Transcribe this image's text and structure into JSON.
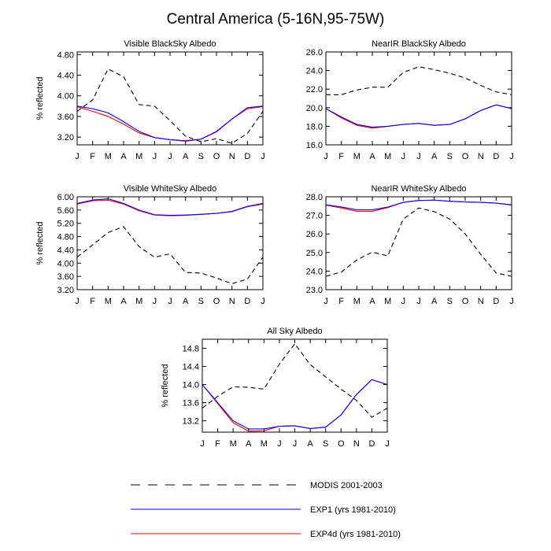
{
  "figure": {
    "title": "Central America (5-16N,95-75W)"
  },
  "legend": [
    {
      "label": "MODIS 2001-2003",
      "color": "#000000",
      "dash": "dashed"
    },
    {
      "label": "EXP1 (yrs 1981-2010)",
      "color": "#0000ff",
      "dash": "solid"
    },
    {
      "label": "EXP4d (yrs 1981-2010)",
      "color": "#ff0000",
      "dash": "solid"
    }
  ],
  "chart_data": [
    {
      "type": "line",
      "title": "Visible BlackSky Albedo",
      "ylabel": "% reflected",
      "categories": [
        "J",
        "F",
        "M",
        "A",
        "M",
        "J",
        "J",
        "A",
        "S",
        "O",
        "N",
        "D",
        "J"
      ],
      "ylim": [
        3.05,
        4.85
      ],
      "yticks": [
        3.2,
        3.6,
        4.0,
        4.4,
        4.8
      ],
      "ytick_labels": [
        "3.20",
        "3.60",
        "4.00",
        "4.40",
        "4.80"
      ],
      "series": [
        {
          "name": "MODIS 2001-2003",
          "color": "#000000",
          "dash": true,
          "values": [
            3.7,
            3.92,
            4.52,
            4.37,
            3.83,
            3.8,
            3.52,
            3.22,
            3.11,
            3.17,
            3.08,
            3.27,
            3.7
          ]
        },
        {
          "name": "EXP4d (yrs 1981-2010)",
          "color": "#ff0000",
          "dash": false,
          "values": [
            3.79,
            3.7,
            3.6,
            3.45,
            3.28,
            3.19,
            3.15,
            3.12,
            3.16,
            3.3,
            3.55,
            3.75,
            3.79
          ]
        },
        {
          "name": "EXP1 (yrs 1981-2010)",
          "color": "#0000ff",
          "dash": false,
          "values": [
            3.8,
            3.75,
            3.67,
            3.5,
            3.31,
            3.19,
            3.15,
            3.13,
            3.16,
            3.31,
            3.55,
            3.77,
            3.8
          ]
        }
      ]
    },
    {
      "type": "line",
      "title": "NearIR BlackSky Albedo",
      "ylabel": "",
      "categories": [
        "J",
        "F",
        "M",
        "A",
        "M",
        "J",
        "J",
        "A",
        "S",
        "O",
        "N",
        "D",
        "J"
      ],
      "ylim": [
        16.0,
        26.0
      ],
      "yticks": [
        16.0,
        18.0,
        20.0,
        22.0,
        24.0,
        26.0
      ],
      "ytick_labels": [
        "16.0",
        "18.0",
        "20.0",
        "22.0",
        "24.0",
        "26.0"
      ],
      "series": [
        {
          "name": "MODIS 2001-2003",
          "color": "#000000",
          "dash": true,
          "values": [
            21.4,
            21.4,
            21.9,
            22.2,
            22.2,
            23.8,
            24.4,
            24.1,
            23.7,
            23.2,
            22.4,
            21.7,
            21.4
          ]
        },
        {
          "name": "EXP4d (yrs 1981-2010)",
          "color": "#ff0000",
          "dash": false,
          "values": [
            19.9,
            18.9,
            18.1,
            17.8,
            18.0,
            18.2,
            18.3,
            18.1,
            18.2,
            18.8,
            19.7,
            20.3,
            19.9
          ]
        },
        {
          "name": "EXP1 (yrs 1981-2010)",
          "color": "#0000ff",
          "dash": false,
          "values": [
            19.9,
            19.0,
            18.2,
            17.9,
            18.0,
            18.2,
            18.3,
            18.1,
            18.2,
            18.8,
            19.7,
            20.3,
            19.9
          ]
        }
      ]
    },
    {
      "type": "line",
      "title": "Visible WhiteSky Albedo",
      "ylabel": "% reflected",
      "categories": [
        "J",
        "F",
        "M",
        "A",
        "M",
        "J",
        "J",
        "A",
        "S",
        "O",
        "N",
        "D",
        "J"
      ],
      "ylim": [
        3.2,
        6.0
      ],
      "yticks": [
        3.2,
        3.6,
        4.0,
        4.4,
        4.8,
        5.2,
        5.6,
        6.0
      ],
      "ytick_labels": [
        "3.20",
        "3.60",
        "4.00",
        "4.40",
        "4.80",
        "5.20",
        "5.60",
        "6.00"
      ],
      "series": [
        {
          "name": "MODIS 2001-2003",
          "color": "#000000",
          "dash": true,
          "values": [
            4.18,
            4.55,
            4.92,
            5.1,
            4.5,
            4.18,
            4.28,
            3.72,
            3.7,
            3.55,
            3.38,
            3.52,
            4.18
          ]
        },
        {
          "name": "EXP4d (yrs 1981-2010)",
          "color": "#ff0000",
          "dash": false,
          "values": [
            5.78,
            5.88,
            5.9,
            5.78,
            5.58,
            5.45,
            5.43,
            5.44,
            5.47,
            5.5,
            5.55,
            5.7,
            5.78
          ]
        },
        {
          "name": "EXP1 (yrs 1981-2010)",
          "color": "#0000ff",
          "dash": false,
          "values": [
            5.8,
            5.9,
            5.94,
            5.8,
            5.6,
            5.46,
            5.44,
            5.45,
            5.47,
            5.5,
            5.56,
            5.71,
            5.8
          ]
        }
      ]
    },
    {
      "type": "line",
      "title": "NearIR WhiteSky Albedo",
      "ylabel": "",
      "categories": [
        "J",
        "F",
        "M",
        "A",
        "M",
        "J",
        "J",
        "A",
        "S",
        "O",
        "N",
        "D",
        "J"
      ],
      "ylim": [
        23.0,
        28.0
      ],
      "yticks": [
        23.0,
        24.0,
        25.0,
        26.0,
        27.0,
        28.0
      ],
      "ytick_labels": [
        "23.0",
        "24.0",
        "25.0",
        "26.0",
        "27.0",
        "28.0"
      ],
      "series": [
        {
          "name": "MODIS 2001-2003",
          "color": "#000000",
          "dash": true,
          "values": [
            23.72,
            23.95,
            24.6,
            25.02,
            24.82,
            26.8,
            27.4,
            27.2,
            26.8,
            26.0,
            24.9,
            23.9,
            23.72
          ]
        },
        {
          "name": "EXP4d (yrs 1981-2010)",
          "color": "#ff0000",
          "dash": false,
          "values": [
            27.55,
            27.4,
            27.22,
            27.22,
            27.42,
            27.7,
            27.8,
            27.82,
            27.76,
            27.72,
            27.7,
            27.66,
            27.55
          ]
        },
        {
          "name": "EXP1 (yrs 1981-2010)",
          "color": "#0000ff",
          "dash": false,
          "values": [
            27.57,
            27.45,
            27.3,
            27.3,
            27.45,
            27.7,
            27.8,
            27.82,
            27.76,
            27.72,
            27.7,
            27.66,
            27.57
          ]
        }
      ]
    },
    {
      "type": "line",
      "title": "All Sky Albedo",
      "ylabel": "% reflected",
      "categories": [
        "J",
        "F",
        "M",
        "A",
        "M",
        "J",
        "J",
        "A",
        "S",
        "O",
        "N",
        "D",
        "J"
      ],
      "ylim": [
        12.95,
        15.0
      ],
      "yticks": [
        13.2,
        13.6,
        14.0,
        14.4,
        14.8
      ],
      "ytick_labels": [
        "13.2",
        "13.6",
        "14.0",
        "14.4",
        "14.8"
      ],
      "series": [
        {
          "name": "MODIS 2001-2003",
          "color": "#000000",
          "dash": true,
          "values": [
            13.48,
            13.74,
            13.95,
            13.94,
            13.9,
            14.45,
            14.9,
            14.44,
            14.17,
            13.9,
            13.65,
            13.28,
            13.48
          ]
        },
        {
          "name": "EXP4d (yrs 1981-2010)",
          "color": "#ff0000",
          "dash": false,
          "values": [
            14.0,
            13.58,
            13.16,
            12.97,
            12.98,
            13.08,
            13.09,
            13.03,
            13.06,
            13.33,
            13.78,
            14.11,
            14.0
          ]
        },
        {
          "name": "EXP1 (yrs 1981-2010)",
          "color": "#0000ff",
          "dash": false,
          "values": [
            14.0,
            13.6,
            13.2,
            13.02,
            13.02,
            13.08,
            13.09,
            13.03,
            13.06,
            13.33,
            13.78,
            14.11,
            14.0
          ]
        }
      ]
    }
  ]
}
